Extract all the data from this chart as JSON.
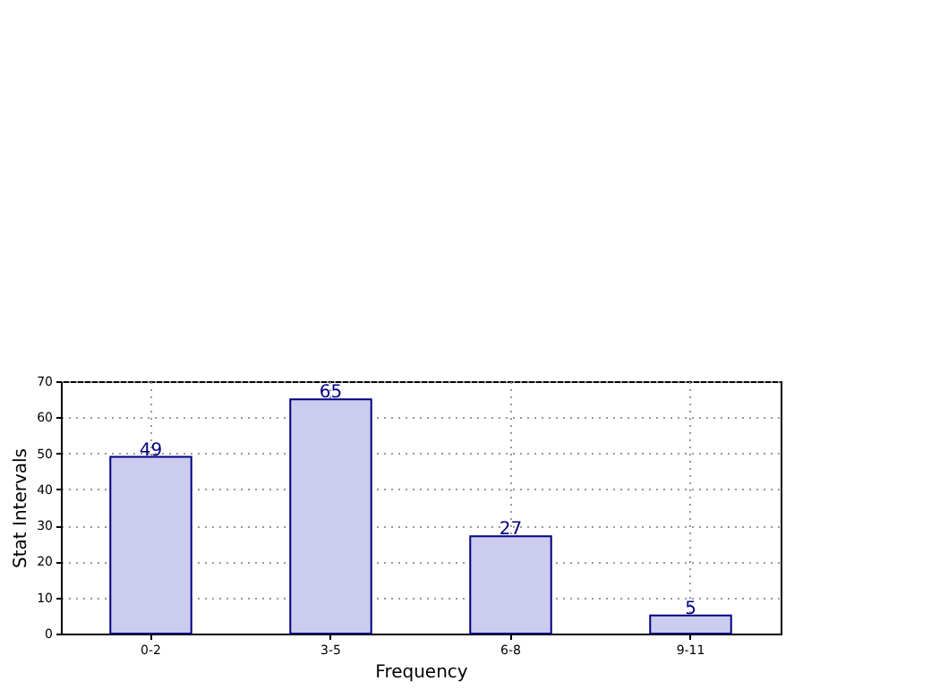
{
  "chart_data": {
    "type": "bar",
    "xlabel": "Frequency",
    "ylabel": "Stat Intervals",
    "categories": [
      "0-2",
      "3-5",
      "6-8",
      "9-11"
    ],
    "values": [
      49,
      65,
      27,
      5
    ],
    "color": "#ccccee",
    "ylim": [
      0,
      70
    ],
    "yticks": [
      0,
      10,
      20,
      30,
      40,
      50,
      60,
      70
    ],
    "grid": true,
    "data_labels": true
  }
}
